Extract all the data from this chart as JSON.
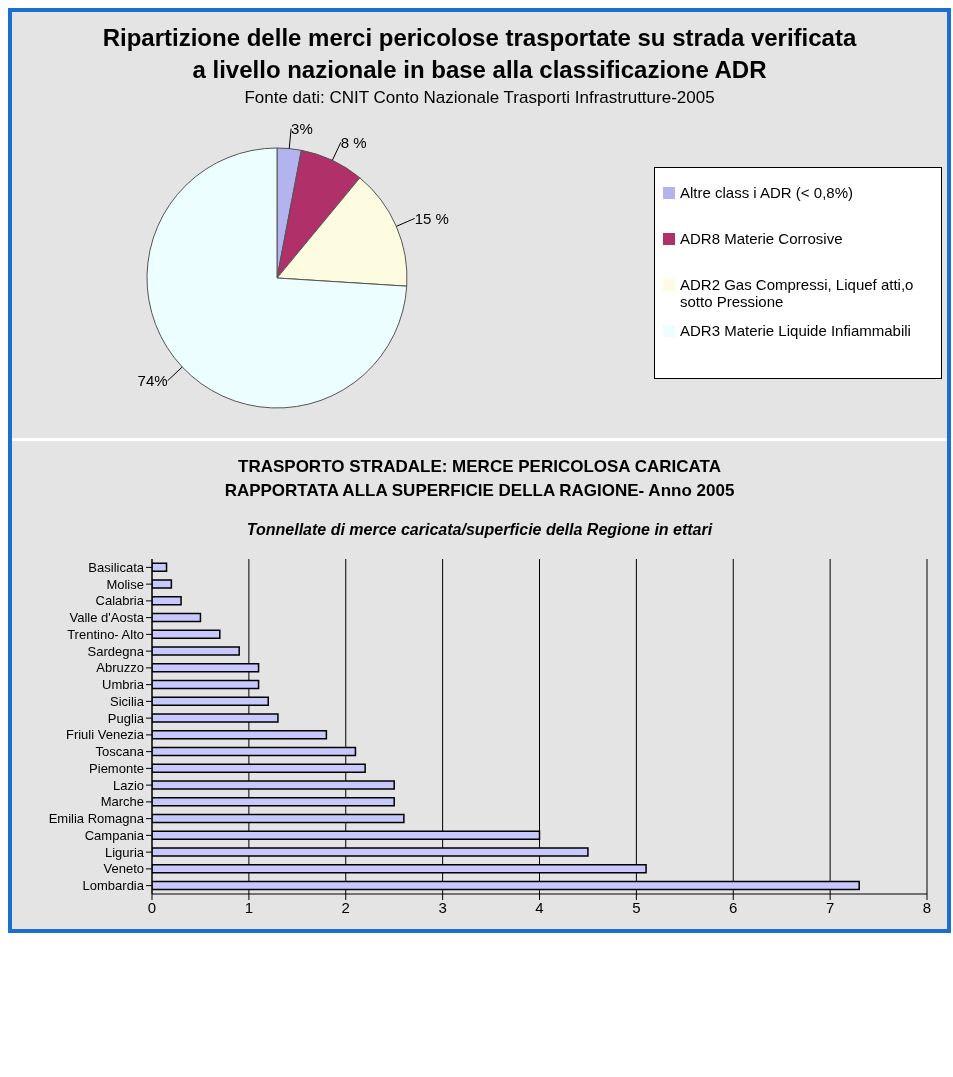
{
  "chart_data": [
    {
      "type": "pie",
      "title": "Ripartizione delle merci pericolose trasportate su strada verificata a livello nazionale in base alla classificazione ADR",
      "subtitle": "Fonte dati: CNIT Conto Nazionale Trasporti Infrastrutture-2005",
      "categories": [
        "Altre class i ADR (< 0,8%)",
        "ADR8 Materie Corrosive",
        "ADR2 Gas Compressi, Liquef atti,o sotto Pressione",
        "ADR3 Materie Liquide Infiammabili"
      ],
      "values": [
        3,
        8,
        15,
        74
      ],
      "colors": [
        "#b3b3f0",
        "#b0306a",
        "#fdfbe0",
        "#ecfeff"
      ],
      "value_labels": [
        "3%",
        "8 %",
        "15 %",
        "74%"
      ],
      "legend": "right"
    },
    {
      "type": "bar",
      "orientation": "horizontal",
      "title": "TRASPORTO STRADALE: MERCE PERICOLOSA CARICATA RAPPORTATA ALLA SUPERFICIE DELLA RAGIONE- Anno 2005",
      "subtitle": "Tonnellate di merce caricata/superficie della Regione in ettari",
      "categories": [
        "Basilicata",
        "Molise",
        "Calabria",
        "Valle d'Aosta",
        "Trentino- Alto",
        "Sardegna",
        "Abruzzo",
        "Umbria",
        "Sicilia",
        "Puglia",
        "Friuli Venezia",
        "Toscana",
        "Piemonte",
        "Lazio",
        "Marche",
        "Emilia Romagna",
        "Campania",
        "Liguria",
        "Veneto",
        "Lombardia"
      ],
      "values": [
        0.15,
        0.2,
        0.3,
        0.5,
        0.7,
        0.9,
        1.1,
        1.1,
        1.2,
        1.3,
        1.8,
        2.1,
        2.2,
        2.5,
        2.5,
        2.6,
        4.0,
        4.5,
        5.1,
        7.3
      ],
      "color": "#c8c8ff",
      "xlim": [
        0,
        8
      ],
      "xticks": [
        0,
        1,
        2,
        3,
        4,
        5,
        6,
        7,
        8
      ],
      "grid": "x"
    }
  ]
}
